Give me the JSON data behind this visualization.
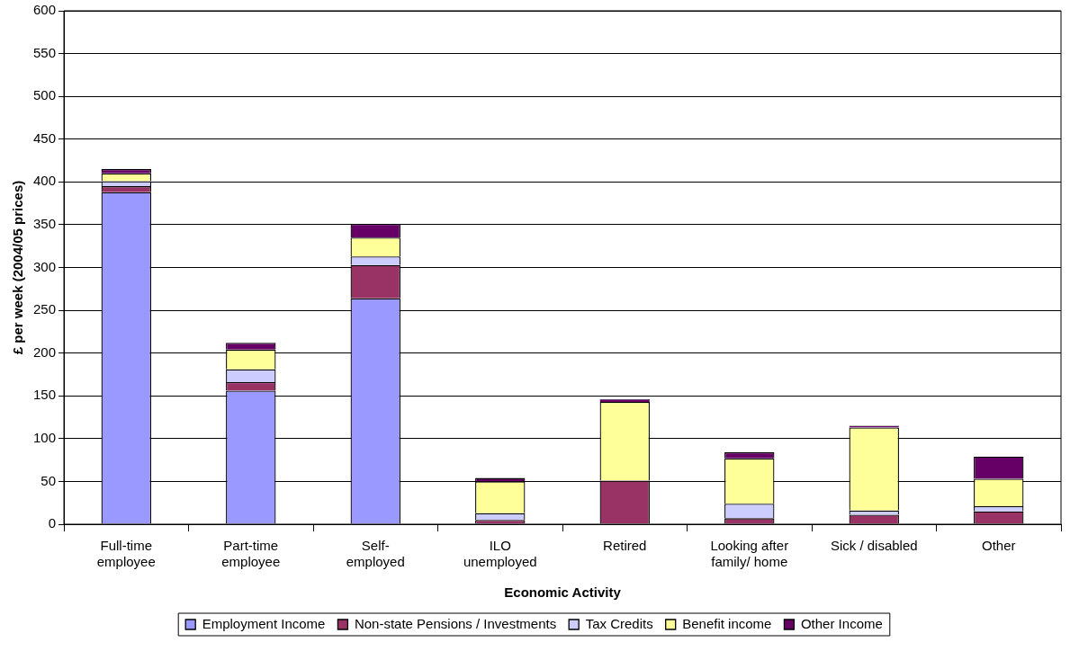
{
  "chart_data": {
    "type": "bar",
    "stacked": true,
    "xlabel": "Economic Activity",
    "ylabel": "£ per week (2004/05 prices)",
    "categories": [
      "Full-time\nemployee",
      "Part-time\nemployee",
      "Self-\nemployed",
      "ILO\nunemployed",
      "Retired",
      "Looking after\nfamily/ home",
      "Sick / disabled",
      "Other"
    ],
    "series": [
      {
        "name": "Employment Income",
        "color": "#9999ff",
        "values": [
          388,
          156,
          264,
          0,
          0,
          0,
          0,
          0
        ]
      },
      {
        "name": "Non-state Pensions / Investments",
        "color": "#993366",
        "values": [
          7,
          10,
          39,
          5,
          51,
          7,
          11,
          15
        ]
      },
      {
        "name": "Tax Credits",
        "color": "#ccccff",
        "values": [
          6,
          15,
          10,
          8,
          0,
          17,
          5,
          6
        ]
      },
      {
        "name": "Benefit income",
        "color": "#ffff99",
        "values": [
          9,
          23,
          22,
          37,
          92,
          53,
          97,
          32
        ]
      },
      {
        "name": "Other Income",
        "color": "#660066",
        "values": [
          5,
          8,
          16,
          4,
          3,
          7,
          2,
          26
        ]
      }
    ],
    "ylim": [
      0,
      600
    ],
    "yticks": [
      0,
      50,
      100,
      150,
      200,
      250,
      300,
      350,
      400,
      450,
      500,
      550,
      600
    ],
    "grid": "y",
    "legend": "bottom"
  }
}
